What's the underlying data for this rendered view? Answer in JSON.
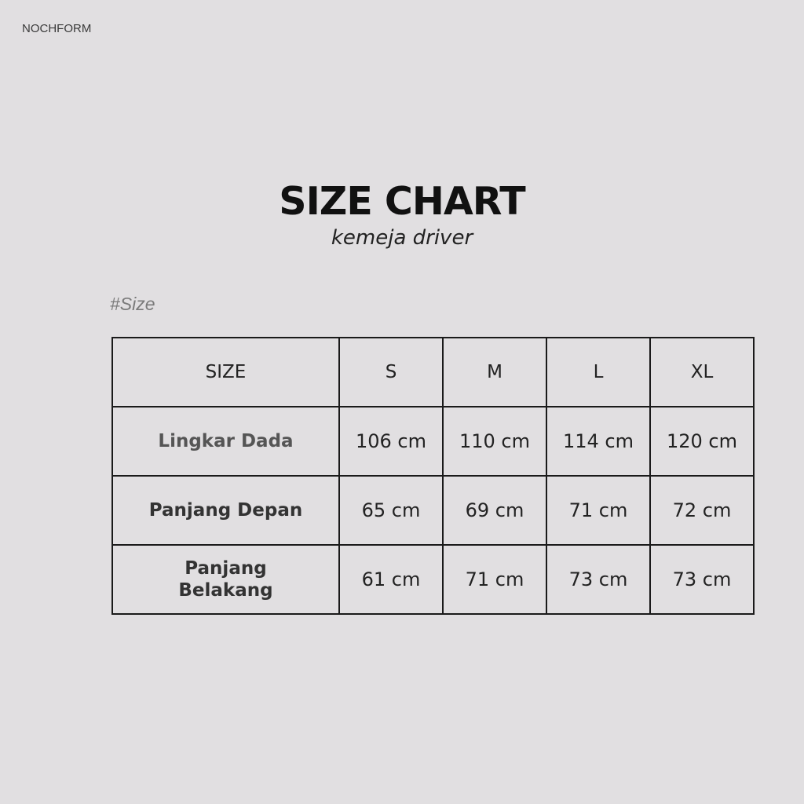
{
  "brand": {
    "logo": "NOCHFORM"
  },
  "header": {
    "title": "SIZE CHART",
    "subtitle": "kemeja driver"
  },
  "tag": "#Size",
  "table": {
    "headers": [
      "SIZE",
      "S",
      "M",
      "L",
      "XL"
    ],
    "rows": [
      {
        "label": "Lingkar Dada",
        "values": [
          "106 cm",
          "110 cm",
          "114 cm",
          "120 cm"
        ]
      },
      {
        "label": "Panjang Depan",
        "values": [
          "65 cm",
          "69 cm",
          "71 cm",
          "72 cm"
        ]
      },
      {
        "label": "Panjang Belakang",
        "values": [
          "61 cm",
          "71 cm",
          "73 cm",
          "73 cm"
        ]
      }
    ]
  }
}
